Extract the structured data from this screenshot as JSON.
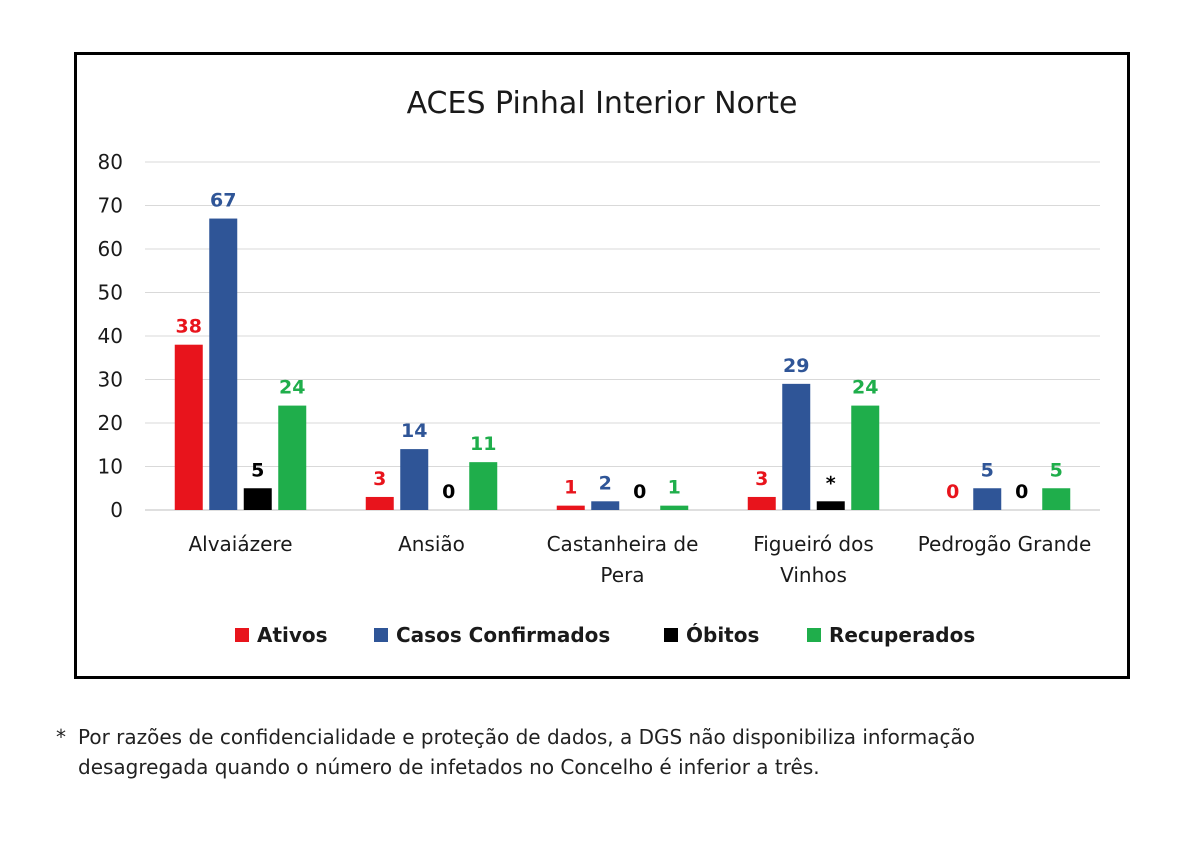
{
  "chart_data": {
    "type": "bar",
    "title": "ACES Pinhal Interior Norte",
    "categories": [
      [
        "Alvaiázere"
      ],
      [
        "Ansião"
      ],
      [
        "Castanheira de",
        "Pera"
      ],
      [
        "Figueiró dos",
        "Vinhos"
      ],
      [
        "Pedrogão Grande"
      ]
    ],
    "series": [
      {
        "name": "Ativos",
        "color": "#e8141c",
        "values": [
          38,
          3,
          1,
          3,
          0
        ],
        "labels": [
          "38",
          "3",
          "1",
          "3",
          "0"
        ]
      },
      {
        "name": "Casos Confirmados",
        "color": "#2f5597",
        "values": [
          67,
          14,
          2,
          29,
          5
        ],
        "labels": [
          "67",
          "14",
          "2",
          "29",
          "5"
        ]
      },
      {
        "name": "Óbitos",
        "color": "#000000",
        "values": [
          5,
          0,
          0,
          2,
          0
        ],
        "labels": [
          "5",
          "0",
          "0",
          "*",
          "0"
        ]
      },
      {
        "name": "Recuperados",
        "color": "#1fae4b",
        "values": [
          24,
          11,
          1,
          24,
          5
        ],
        "labels": [
          "24",
          "11",
          "1",
          "24",
          "5"
        ]
      }
    ],
    "yticks": [
      0,
      10,
      20,
      30,
      40,
      50,
      60,
      70,
      80
    ],
    "ylim": [
      0,
      80
    ],
    "grid": true,
    "legend_position": "bottom"
  },
  "footnote": {
    "marker": "*",
    "line1": "Por razões de confidencialidade e proteção de dados, a DGS não disponibiliza informação",
    "line2": "desagregada quando o número de infetados no Concelho é inferior a três."
  }
}
